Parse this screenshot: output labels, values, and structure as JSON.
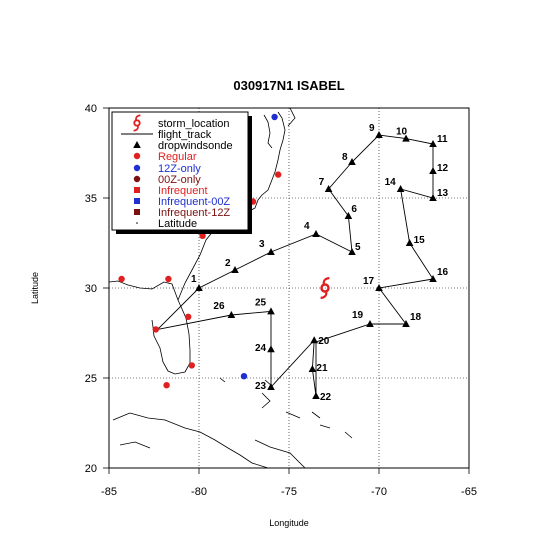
{
  "title": "030917N1 ISABEL",
  "xlabel": "Longitude",
  "ylabel": "Latitude",
  "x_ticks": [
    "-85",
    "-80",
    "-75",
    "-70",
    "-65"
  ],
  "y_ticks": [
    "20",
    "25",
    "30",
    "35",
    "40"
  ],
  "legend": {
    "placement": "top-left",
    "items": [
      {
        "label": "storm_location",
        "symbol": "storm-icon",
        "color": "#000000",
        "marker_color": "#e02020"
      },
      {
        "label": "flight_track",
        "symbol": "line",
        "color": "#000000"
      },
      {
        "label": "dropwindsonde",
        "symbol": "triangle",
        "color": "#000000"
      },
      {
        "label": "Regular",
        "symbol": "circle",
        "color": "#e02020"
      },
      {
        "label": "12Z-only",
        "symbol": "circle",
        "color": "#1f2fd0"
      },
      {
        "label": "00Z-only",
        "symbol": "circle",
        "color": "#7a1010"
      },
      {
        "label": "Infrequent",
        "symbol": "square",
        "color": "#e02020"
      },
      {
        "label": "Infrequent-00Z",
        "symbol": "square",
        "color": "#1f2fd0"
      },
      {
        "label": "Infrequent-12Z",
        "symbol": "square",
        "color": "#7a1010"
      },
      {
        "label": "Latitude",
        "symbol": "dot",
        "color": "#000000"
      }
    ]
  },
  "chart_data": {
    "type": "scatter",
    "title": "030917N1 ISABEL",
    "xlabel": "Longitude",
    "ylabel": "Latitude",
    "xlim": [
      -85,
      -65
    ],
    "ylim": [
      20,
      40
    ],
    "grid": true,
    "storm_location": {
      "lon": -73.0,
      "lat": 30.0
    },
    "flight_track": [
      [
        -82.3,
        27.7
      ],
      [
        -80.0,
        30.0
      ],
      [
        -78.0,
        31.0
      ],
      [
        -76.0,
        32.0
      ],
      [
        -73.5,
        33.0
      ],
      [
        -71.5,
        32.0
      ],
      [
        -71.7,
        34.0
      ],
      [
        -72.8,
        35.5
      ],
      [
        -71.5,
        37.0
      ],
      [
        -70.0,
        38.5
      ],
      [
        -68.5,
        38.3
      ],
      [
        -67.0,
        38.0
      ],
      [
        -67.0,
        36.5
      ],
      [
        -67.0,
        35.0
      ],
      [
        -68.8,
        35.5
      ],
      [
        -68.3,
        32.5
      ],
      [
        -67.0,
        30.5
      ],
      [
        -70.0,
        30.0
      ],
      [
        -68.5,
        28.0
      ],
      [
        -70.5,
        28.0
      ],
      [
        -73.5,
        27.0
      ],
      [
        -73.5,
        24.0
      ],
      [
        -73.7,
        25.5
      ],
      [
        -73.6,
        27.1
      ],
      [
        -76.0,
        24.5
      ],
      [
        -76.0,
        26.6
      ],
      [
        -76.0,
        28.7
      ],
      [
        -78.2,
        28.5
      ],
      [
        -82.3,
        27.7
      ]
    ],
    "dropwindsondes": [
      {
        "id": "1",
        "lon": -80.0,
        "lat": 30.0
      },
      {
        "id": "2",
        "lon": -78.0,
        "lat": 31.0
      },
      {
        "id": "3",
        "lon": -76.0,
        "lat": 32.0
      },
      {
        "id": "4",
        "lon": -73.5,
        "lat": 33.0
      },
      {
        "id": "5",
        "lon": -71.5,
        "lat": 32.0
      },
      {
        "id": "6",
        "lon": -71.7,
        "lat": 34.0
      },
      {
        "id": "7",
        "lon": -72.8,
        "lat": 35.5
      },
      {
        "id": "8",
        "lon": -71.5,
        "lat": 37.0
      },
      {
        "id": "9",
        "lon": -70.0,
        "lat": 38.5
      },
      {
        "id": "10",
        "lon": -68.5,
        "lat": 38.3
      },
      {
        "id": "11",
        "lon": -67.0,
        "lat": 38.0
      },
      {
        "id": "12",
        "lon": -67.0,
        "lat": 36.5
      },
      {
        "id": "13",
        "lon": -67.0,
        "lat": 35.0
      },
      {
        "id": "14",
        "lon": -68.8,
        "lat": 35.5
      },
      {
        "id": "15",
        "lon": -68.3,
        "lat": 32.5
      },
      {
        "id": "16",
        "lon": -67.0,
        "lat": 30.5
      },
      {
        "id": "17",
        "lon": -70.0,
        "lat": 30.0
      },
      {
        "id": "18",
        "lon": -68.5,
        "lat": 28.0
      },
      {
        "id": "19",
        "lon": -70.5,
        "lat": 28.0
      },
      {
        "id": "20",
        "lon": -73.6,
        "lat": 27.1
      },
      {
        "id": "21",
        "lon": -73.7,
        "lat": 25.5
      },
      {
        "id": "22",
        "lon": -73.5,
        "lat": 24.0
      },
      {
        "id": "23",
        "lon": -76.0,
        "lat": 24.5
      },
      {
        "id": "24",
        "lon": -76.0,
        "lat": 26.6
      },
      {
        "id": "25",
        "lon": -76.0,
        "lat": 28.7
      },
      {
        "id": "26",
        "lon": -78.2,
        "lat": 28.5
      }
    ],
    "stations": [
      {
        "type": "Regular",
        "lon": -84.3,
        "lat": 30.5
      },
      {
        "type": "Regular",
        "lon": -81.7,
        "lat": 30.5
      },
      {
        "type": "Regular",
        "lon": -82.4,
        "lat": 27.7
      },
      {
        "type": "Regular",
        "lon": -80.6,
        "lat": 28.4
      },
      {
        "type": "Regular",
        "lon": -80.4,
        "lat": 25.7
      },
      {
        "type": "Regular",
        "lon": -81.8,
        "lat": 24.6
      },
      {
        "type": "Regular",
        "lon": -79.8,
        "lat": 32.9
      },
      {
        "type": "Regular",
        "lon": -77.0,
        "lat": 34.8
      },
      {
        "type": "Regular",
        "lon": -75.6,
        "lat": 36.3
      },
      {
        "type": "12Z-only",
        "lon": -77.5,
        "lat": 25.1
      },
      {
        "type": "12Z-only",
        "lon": -75.8,
        "lat": 39.5
      }
    ]
  }
}
